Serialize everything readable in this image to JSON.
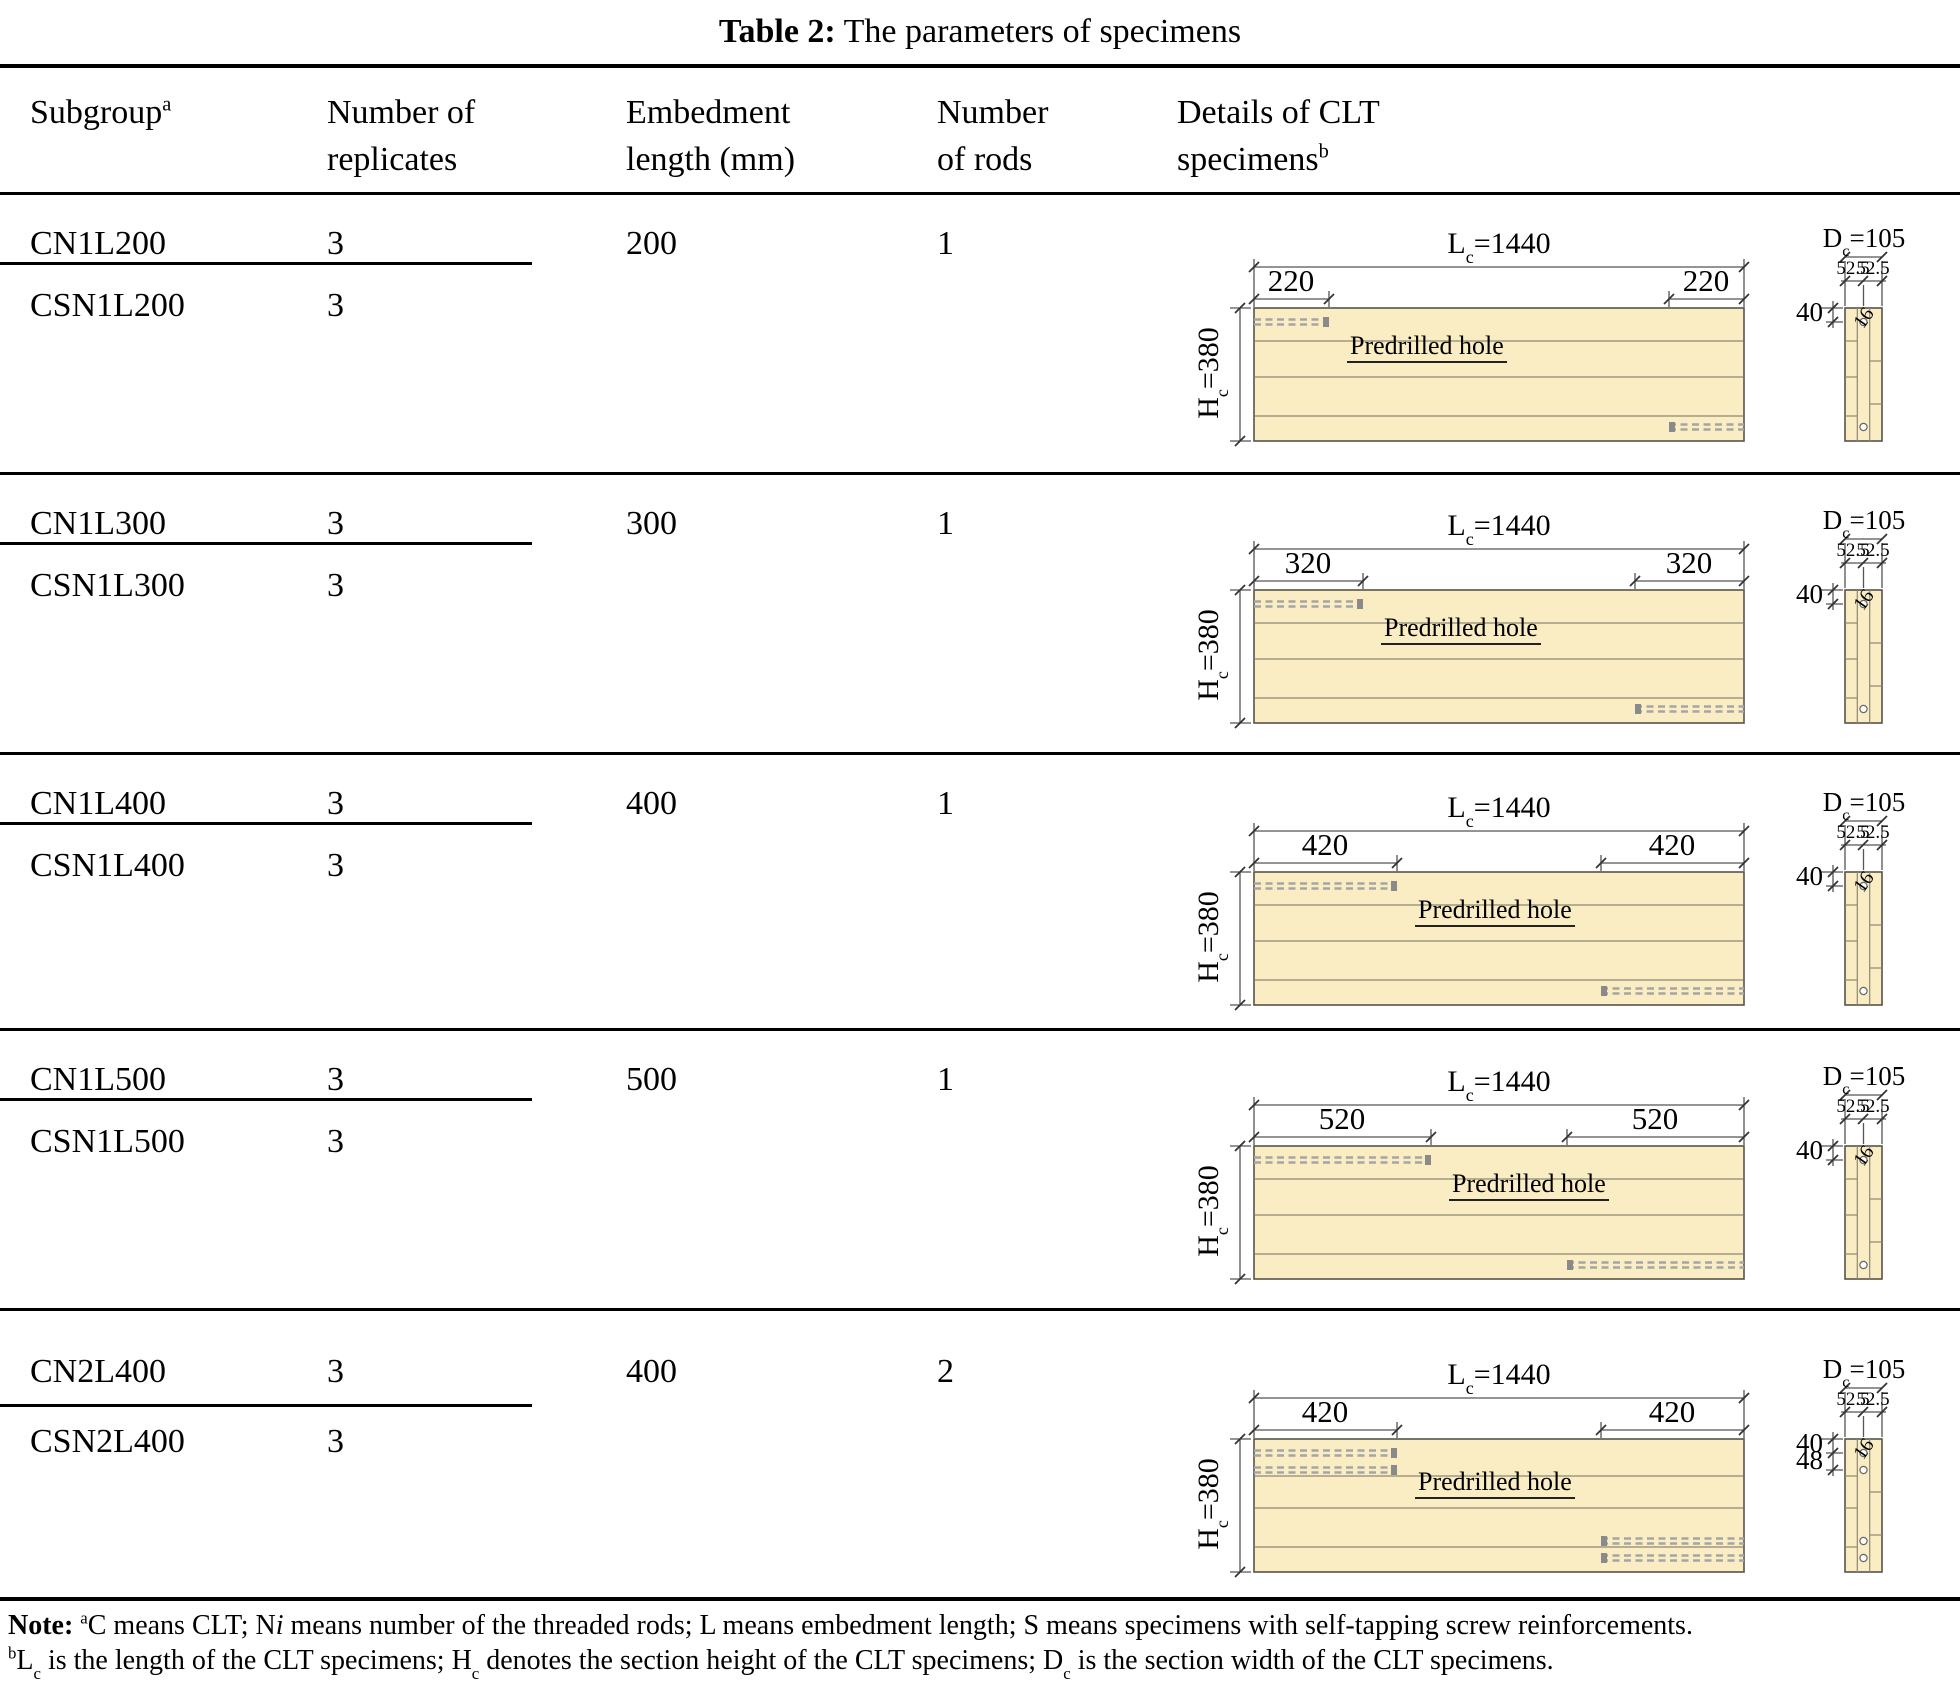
{
  "title_segments": [
    {
      "t": "Table 2:",
      "s": "b"
    },
    {
      "t": " The parameters of specimens"
    }
  ],
  "header": {
    "subgroup": [
      {
        "t": "Subgroup"
      },
      {
        "t": "a",
        "s": "sup"
      }
    ],
    "replicates_line1": "Number of",
    "replicates_line2": "replicates",
    "embedment_line1": "Embedment",
    "embedment_line2": "length (mm)",
    "rods_line1": "Number",
    "rods_line2": "of rods",
    "details_line1": "Details of CLT",
    "details_line2": [
      {
        "t": "specimens"
      },
      {
        "t": "b",
        "s": "sup"
      }
    ]
  },
  "groups": [
    {
      "cn": "CN1L200",
      "cn_replicates": "3",
      "csn": "CSN1L200",
      "csn_replicates": "3",
      "embedment_length": "200",
      "num_rods": "1",
      "diagram": {
        "length_label": [
          {
            "t": "L"
          },
          {
            "t": "c",
            "s": "sub"
          },
          {
            "t": "=1440"
          }
        ],
        "left_offset": "220",
        "right_offset": "220",
        "height_label": [
          {
            "t": "H"
          },
          {
            "t": "c",
            "s": "sub"
          },
          {
            "t": "=380"
          }
        ],
        "width_label": [
          {
            "t": "D"
          },
          {
            "t": "c",
            "s": "sub"
          },
          {
            "t": "=105"
          }
        ],
        "half_width_left": "52.5",
        "half_width_right": "52.5",
        "edge_distance": "40",
        "hole_diameter": "16",
        "hole_note": "Predrilled hole"
      }
    },
    {
      "cn": "CN1L300",
      "cn_replicates": "3",
      "csn": "CSN1L300",
      "csn_replicates": "3",
      "embedment_length": "300",
      "num_rods": "1",
      "diagram": {
        "length_label": [
          {
            "t": "L"
          },
          {
            "t": "c",
            "s": "sub"
          },
          {
            "t": "=1440"
          }
        ],
        "left_offset": "320",
        "right_offset": "320",
        "height_label": [
          {
            "t": "H"
          },
          {
            "t": "c",
            "s": "sub"
          },
          {
            "t": "=380"
          }
        ],
        "width_label": [
          {
            "t": "D"
          },
          {
            "t": "c",
            "s": "sub"
          },
          {
            "t": "=105"
          }
        ],
        "half_width_left": "52.5",
        "half_width_right": "52.5",
        "edge_distance": "40",
        "hole_diameter": "16",
        "hole_note": "Predrilled hole"
      }
    },
    {
      "cn": "CN1L400",
      "cn_replicates": "3",
      "csn": "CSN1L400",
      "csn_replicates": "3",
      "embedment_length": "400",
      "num_rods": "1",
      "diagram": {
        "length_label": [
          {
            "t": "L"
          },
          {
            "t": "c",
            "s": "sub"
          },
          {
            "t": "=1440"
          }
        ],
        "left_offset": "420",
        "right_offset": "420",
        "height_label": [
          {
            "t": "H"
          },
          {
            "t": "c",
            "s": "sub"
          },
          {
            "t": "=380"
          }
        ],
        "width_label": [
          {
            "t": "D"
          },
          {
            "t": "c",
            "s": "sub"
          },
          {
            "t": "=105"
          }
        ],
        "half_width_left": "52.5",
        "half_width_right": "52.5",
        "edge_distance": "40",
        "hole_diameter": "16",
        "hole_note": "Predrilled hole"
      }
    },
    {
      "cn": "CN1L500",
      "cn_replicates": "3",
      "csn": "CSN1L500",
      "csn_replicates": "3",
      "embedment_length": "500",
      "num_rods": "1",
      "diagram": {
        "length_label": [
          {
            "t": "L"
          },
          {
            "t": "c",
            "s": "sub"
          },
          {
            "t": "=1440"
          }
        ],
        "left_offset": "520",
        "right_offset": "520",
        "height_label": [
          {
            "t": "H"
          },
          {
            "t": "c",
            "s": "sub"
          },
          {
            "t": "=380"
          }
        ],
        "width_label": [
          {
            "t": "D"
          },
          {
            "t": "c",
            "s": "sub"
          },
          {
            "t": "=105"
          }
        ],
        "half_width_left": "52.5",
        "half_width_right": "52.5",
        "edge_distance": "40",
        "hole_diameter": "16",
        "hole_note": "Predrilled hole"
      }
    },
    {
      "cn": "CN2L400",
      "cn_replicates": "3",
      "csn": "CSN2L400",
      "csn_replicates": "3",
      "embedment_length": "400",
      "num_rods": "2",
      "diagram": {
        "length_label": [
          {
            "t": "L"
          },
          {
            "t": "c",
            "s": "sub"
          },
          {
            "t": "=1440"
          }
        ],
        "left_offset": "420",
        "right_offset": "420",
        "height_label": [
          {
            "t": "H"
          },
          {
            "t": "c",
            "s": "sub"
          },
          {
            "t": "=380"
          }
        ],
        "width_label": [
          {
            "t": "D"
          },
          {
            "t": "c",
            "s": "sub"
          },
          {
            "t": "=105"
          }
        ],
        "half_width_left": "52.5",
        "half_width_right": "52.5",
        "edge_distance": "40",
        "rod_spacing": "48",
        "hole_diameter": "16",
        "hole_note": "Predrilled hole"
      }
    }
  ],
  "note_line1": [
    {
      "t": "Note: ",
      "s": "b"
    },
    {
      "t": "a",
      "s": "sup"
    },
    {
      "t": "C means CLT; N"
    },
    {
      "t": "i",
      "s": "i"
    },
    {
      "t": " means number of the threaded rods; L means embedment length; S means specimens with self-tapping screw reinforcements."
    }
  ],
  "note_line2": [
    {
      "t": "b",
      "s": "sup"
    },
    {
      "t": "L"
    },
    {
      "t": "c",
      "s": "sub"
    },
    {
      "t": " is the length of the CLT specimens; H"
    },
    {
      "t": "c",
      "s": "sub"
    },
    {
      "t": " denotes the section height of the CLT specimens; D"
    },
    {
      "t": "c",
      "s": "sub"
    },
    {
      "t": " is the section width of the CLT specimens."
    }
  ],
  "colors": {
    "wood": "#faedc4",
    "wood_edge": "#57534b",
    "layer_line": "#8d8872",
    "rod": "#a5a5a5",
    "dim_line": "#555555"
  }
}
